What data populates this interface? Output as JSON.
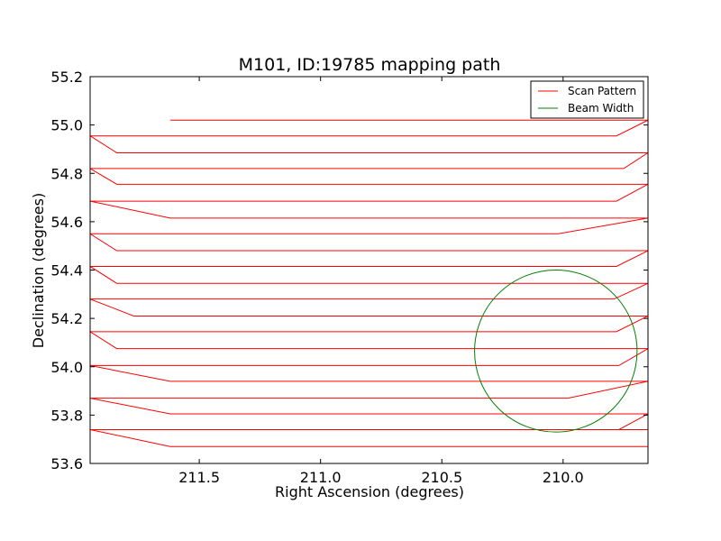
{
  "chart_data": {
    "type": "line",
    "title": "M101, ID:19785 mapping path",
    "xlabel": "Right Ascension (degrees)",
    "ylabel": "Declination (degrees)",
    "xlim": [
      211.95,
      209.65
    ],
    "ylim": [
      53.6,
      55.2
    ],
    "x_ticks": [
      211.5,
      211.0,
      210.5,
      210.0
    ],
    "x_tick_labels": [
      "211.5",
      "211.0",
      "210.5",
      "210.0"
    ],
    "y_ticks": [
      53.6,
      53.8,
      54.0,
      54.2,
      54.4,
      54.6,
      54.8,
      55.0,
      55.2
    ],
    "y_tick_labels": [
      "53.6",
      "53.8",
      "54.0",
      "54.2",
      "54.4",
      "54.6",
      "54.8",
      "55.0",
      "55.2"
    ],
    "grid": false,
    "legend": {
      "placement": "upper right",
      "entries": [
        {
          "label": "Scan Pattern",
          "color": "#ff0000"
        },
        {
          "label": "Beam Width",
          "color": "#008000"
        }
      ]
    },
    "series": [
      {
        "name": "Scan Pattern",
        "color": "#ff0000",
        "x": [
          211.62,
          211.37,
          209.93,
          209.65,
          209.65,
          209.78,
          211.15,
          211.95,
          211.95,
          211.84,
          209.65,
          209.65,
          209.75,
          211.95,
          211.95,
          211.84,
          209.65,
          209.65,
          209.78,
          211.95,
          211.95,
          211.62,
          209.65,
          209.65,
          210.02,
          211.38,
          211.95,
          211.95,
          211.84,
          209.65,
          209.65,
          209.78,
          211.95,
          211.95,
          211.84,
          209.65,
          209.65,
          209.79,
          211.95,
          211.95,
          211.77,
          209.65,
          209.65,
          209.78,
          211.95,
          211.95,
          211.84,
          209.65,
          209.65,
          209.77,
          211.95,
          211.95,
          211.62,
          209.65,
          209.65,
          209.98,
          211.95,
          211.95,
          211.62,
          209.65,
          209.65,
          209.77,
          211.95,
          211.95,
          211.84,
          209.65,
          209.65,
          209.98,
          211.95,
          211.95,
          211.62,
          209.65
        ],
        "y": [
          55.02,
          55.02,
          55.02,
          55.02,
          55.02,
          54.955,
          54.955,
          54.955,
          54.955,
          54.885,
          54.885,
          54.885,
          54.82,
          54.82,
          54.82,
          54.755,
          54.755,
          54.755,
          54.685,
          54.685,
          54.685,
          54.615,
          54.615,
          54.615,
          54.55,
          54.55,
          54.55,
          54.55,
          54.48,
          54.48,
          54.48,
          54.415,
          54.415,
          54.415,
          54.345,
          54.345,
          54.345,
          54.28,
          54.28,
          54.28,
          54.21,
          54.21,
          54.21,
          54.145,
          54.145,
          54.145,
          54.075,
          54.075,
          54.075,
          54.005,
          54.005,
          54.005,
          53.94,
          53.94,
          53.94,
          53.87,
          53.87,
          53.87,
          53.805,
          53.805,
          53.805,
          53.74,
          53.74,
          53.74,
          53.74,
          53.74,
          53.74,
          53.74,
          53.74,
          53.74,
          53.67,
          53.67
        ]
      },
      {
        "name": "Beam Width",
        "color": "#008000",
        "type": "circle",
        "center": [
          210.03,
          54.065
        ],
        "radius": 0.335
      }
    ]
  }
}
